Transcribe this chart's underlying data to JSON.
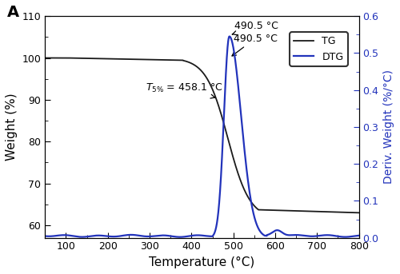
{
  "title_label": "A",
  "xlabel": "Temperature (°C)",
  "ylabel_left": "Weight (%)",
  "ylabel_right": "Deriv. Weight (%/°C)",
  "xlim": [
    50,
    800
  ],
  "ylim_left": [
    57,
    110
  ],
  "ylim_right": [
    0.0,
    0.6
  ],
  "yticks_left": [
    60,
    70,
    80,
    90,
    100,
    110
  ],
  "yticks_right": [
    0.0,
    0.1,
    0.2,
    0.3,
    0.4,
    0.5,
    0.6
  ],
  "xticks": [
    100,
    200,
    300,
    400,
    500,
    600,
    700,
    800
  ],
  "tg_color": "#1a1a1a",
  "dtg_color": "#2233bb",
  "annotation_t5": "T5% = 458.1 °C",
  "annotation_peak": "490.5 °C",
  "t5_x": 458.1,
  "peak_x": 490.5,
  "legend_tg": "TG",
  "legend_dtg": "DTG",
  "tg_linewidth": 1.3,
  "dtg_linewidth": 1.6
}
